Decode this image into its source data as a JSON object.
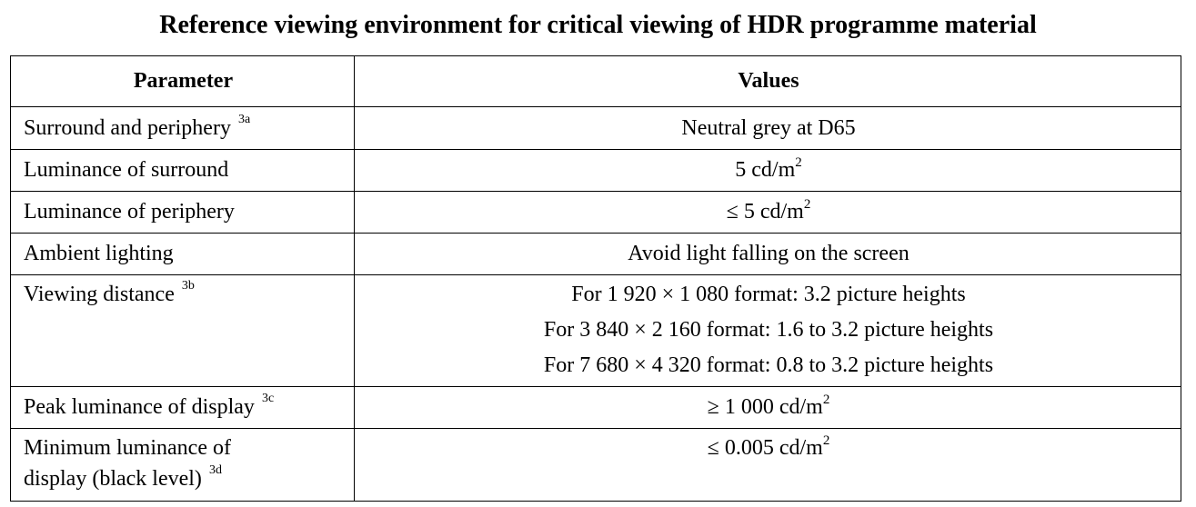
{
  "title": "Reference viewing environment for critical viewing of HDR programme material",
  "table": {
    "headers": {
      "parameter": "Parameter",
      "values": "Values"
    },
    "rows": [
      {
        "parameter": "Surround and periphery",
        "note": "3a",
        "value": "Neutral grey at D65"
      },
      {
        "parameter": "Luminance of surround",
        "value": "5 cd/m",
        "value_sup": "2"
      },
      {
        "parameter": "Luminance of periphery",
        "value": "≤ 5 cd/m",
        "value_sup": "2"
      },
      {
        "parameter": "Ambient lighting",
        "value": "Avoid light falling on the screen"
      },
      {
        "parameter": "Viewing distance",
        "note": "3b",
        "value_lines": [
          "For 1 920 × 1 080 format: 3.2 picture heights",
          "For 3 840 × 2 160 format: 1.6 to 3.2 picture heights",
          "For 7 680 × 4 320 format: 0.8 to 3.2 picture heights"
        ]
      },
      {
        "parameter": "Peak luminance of display",
        "note": "3c",
        "value": "≥ 1 000 cd/m",
        "value_sup": "2"
      },
      {
        "parameter_lines": [
          "Minimum luminance of",
          "display (black level)"
        ],
        "note": "3d",
        "value": "≤ 0.005 cd/m",
        "value_sup": "2"
      }
    ]
  }
}
